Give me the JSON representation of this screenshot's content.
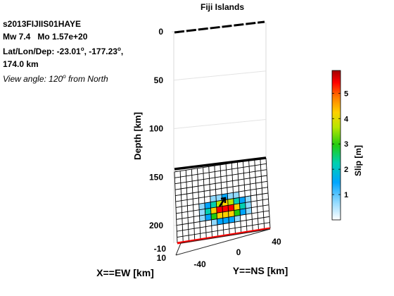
{
  "chart_data": {
    "type": "heatmap",
    "title": "Fiji Islands",
    "event_id": "s2013FIJIIS01HAYE",
    "magnitude": "Mw 7.4",
    "moment": "Mo 1.57e+20",
    "latlon_label": "Lat/Lon/Dep: -23.01",
    "lat_sep": ", -177.23",
    "depth_line": "174.0 km",
    "deg_symbol": "o",
    "view_label": "View angle: 120",
    "view_label_tail": " from North",
    "view_angle_deg": 120,
    "zlabel": "Depth [km]",
    "xlabel": "X==EW [km]",
    "ylabel": "Y==NS [km]",
    "depth_ticks": [
      "0",
      "50",
      "100",
      "150",
      "200"
    ],
    "ew_ticks": [
      "-10",
      "10"
    ],
    "ns_ticks": [
      "-40",
      "0",
      "40"
    ],
    "zlim": [
      0,
      210
    ],
    "grid": true,
    "fault_grid": {
      "cols": 16,
      "rows": 12,
      "top_depth_km": 145,
      "bottom_depth_km": 210
    },
    "slip_m": [
      [
        0,
        0,
        0,
        0,
        0,
        0,
        0,
        0,
        0,
        0,
        0,
        0,
        0,
        0,
        0,
        0
      ],
      [
        0,
        0,
        0,
        0,
        0,
        0,
        0,
        0,
        0,
        0,
        0,
        0,
        0,
        0,
        0,
        0
      ],
      [
        0,
        0,
        0,
        0,
        0,
        0,
        0,
        0,
        0,
        0,
        0,
        0,
        0,
        0,
        0,
        0
      ],
      [
        0,
        0,
        0,
        0,
        0,
        0,
        0,
        0,
        0,
        0,
        0,
        0,
        0,
        0,
        0,
        0
      ],
      [
        0,
        0,
        0,
        0,
        0,
        0,
        0,
        0,
        0.3,
        0,
        0,
        0,
        0,
        0,
        0,
        0
      ],
      [
        0,
        0,
        0,
        0,
        0,
        0.4,
        0.9,
        1.3,
        1.5,
        1.3,
        0.9,
        0.4,
        0,
        0,
        0,
        0
      ],
      [
        0,
        0,
        0,
        0,
        0.7,
        1.7,
        2.8,
        3.8,
        4.2,
        3.8,
        2.8,
        1.7,
        0.7,
        0,
        0,
        0
      ],
      [
        0,
        0,
        0,
        0,
        1.0,
        2.3,
        4.2,
        5.5,
        5.8,
        5.5,
        4.2,
        2.3,
        1.0,
        0,
        0,
        0
      ],
      [
        0,
        0,
        0,
        0,
        0.7,
        1.7,
        3.0,
        4.3,
        4.6,
        4.3,
        3.0,
        1.7,
        0.7,
        0,
        0,
        0
      ],
      [
        0,
        0,
        0,
        0,
        0,
        0.5,
        1.1,
        1.6,
        1.8,
        1.6,
        1.1,
        0.5,
        0,
        0,
        0,
        0
      ],
      [
        0,
        0,
        0,
        0,
        0,
        0,
        0,
        0,
        0,
        0,
        0,
        0,
        0,
        0,
        0,
        0
      ],
      [
        0,
        0,
        0,
        0,
        0,
        0,
        0,
        0,
        0,
        0,
        0,
        0,
        0,
        0,
        0,
        0
      ]
    ],
    "colorbar": {
      "label": "Slip [m]",
      "ticks": [
        "1",
        "2",
        "3",
        "4",
        "5"
      ],
      "range": [
        0,
        5.9
      ]
    },
    "colors": {
      "fault_trace": "#ff0000",
      "grid_line": "#000000",
      "axis_grid": "#d9d9d9",
      "hypocenter_marker": "#000000"
    }
  }
}
